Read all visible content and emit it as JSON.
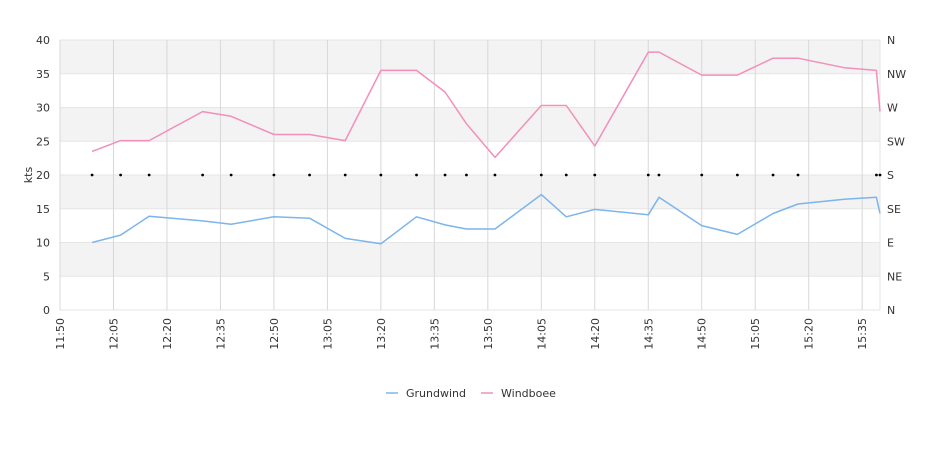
{
  "chart_data": {
    "type": "line",
    "ylabel": "kts",
    "ylim": [
      0,
      40
    ],
    "yticks": [
      "0",
      "5",
      "10",
      "15",
      "20",
      "25",
      "30",
      "35",
      "40"
    ],
    "xlim": [
      "11:50",
      "15:40"
    ],
    "xticks": [
      "11:50",
      "12:05",
      "12:20",
      "12:35",
      "12:50",
      "13:05",
      "13:20",
      "13:35",
      "13:50",
      "14:05",
      "14:20",
      "14:35",
      "14:50",
      "15:05",
      "15:20",
      "15:35"
    ],
    "direction_ticks": [
      "N",
      "NE",
      "E",
      "SE",
      "S",
      "SW",
      "W",
      "NW",
      "N"
    ],
    "grid": true,
    "band_colors": [
      "#f3f3f3",
      "#ffffff"
    ],
    "legend_position": "bottom",
    "series": [
      {
        "name": "Grundwind",
        "color": "#7cb5ec",
        "x": [
          "11:59",
          "12:07",
          "12:15",
          "12:30",
          "12:38",
          "12:50",
          "13:00",
          "13:10",
          "13:20",
          "13:30",
          "13:38",
          "13:44",
          "13:52",
          "14:05",
          "14:12",
          "14:20",
          "14:35",
          "14:38",
          "14:50",
          "15:00",
          "15:10",
          "15:17",
          "15:30",
          "15:39",
          "15:40"
        ],
        "values": [
          10.0,
          11.1,
          13.9,
          13.2,
          12.7,
          13.8,
          13.6,
          10.6,
          9.8,
          13.8,
          12.6,
          12.0,
          12.0,
          17.1,
          13.8,
          14.9,
          14.1,
          16.7,
          12.5,
          11.2,
          14.3,
          15.7,
          16.4,
          16.7,
          14.3
        ]
      },
      {
        "name": "Windboee",
        "color": "#f28fba",
        "x": [
          "11:59",
          "12:07",
          "12:15",
          "12:30",
          "12:38",
          "12:50",
          "13:00",
          "13:10",
          "13:20",
          "13:30",
          "13:38",
          "13:44",
          "13:52",
          "14:05",
          "14:12",
          "14:20",
          "14:35",
          "14:38",
          "14:50",
          "15:00",
          "15:10",
          "15:17",
          "15:30",
          "15:39",
          "15:40"
        ],
        "values": [
          23.5,
          25.1,
          25.1,
          29.4,
          28.7,
          26.0,
          26.0,
          25.1,
          35.5,
          35.5,
          32.3,
          27.6,
          22.6,
          30.3,
          30.3,
          24.3,
          38.2,
          38.2,
          34.8,
          34.8,
          37.3,
          37.3,
          35.9,
          35.5,
          29.4
        ]
      },
      {
        "name": "",
        "type": "scatter",
        "color": "#000000",
        "x": [
          "11:59",
          "12:07",
          "12:15",
          "12:30",
          "12:38",
          "12:50",
          "13:00",
          "13:10",
          "13:20",
          "13:30",
          "13:38",
          "13:44",
          "13:52",
          "14:05",
          "14:12",
          "14:20",
          "14:35",
          "14:38",
          "14:50",
          "15:00",
          "15:10",
          "15:17",
          "15:39",
          "15:40"
        ],
        "values": [
          20,
          20,
          20,
          20,
          20,
          20,
          20,
          20,
          20,
          20,
          20,
          20,
          20,
          20,
          20,
          20,
          20,
          20,
          20,
          20,
          20,
          20,
          20,
          20
        ]
      }
    ]
  }
}
